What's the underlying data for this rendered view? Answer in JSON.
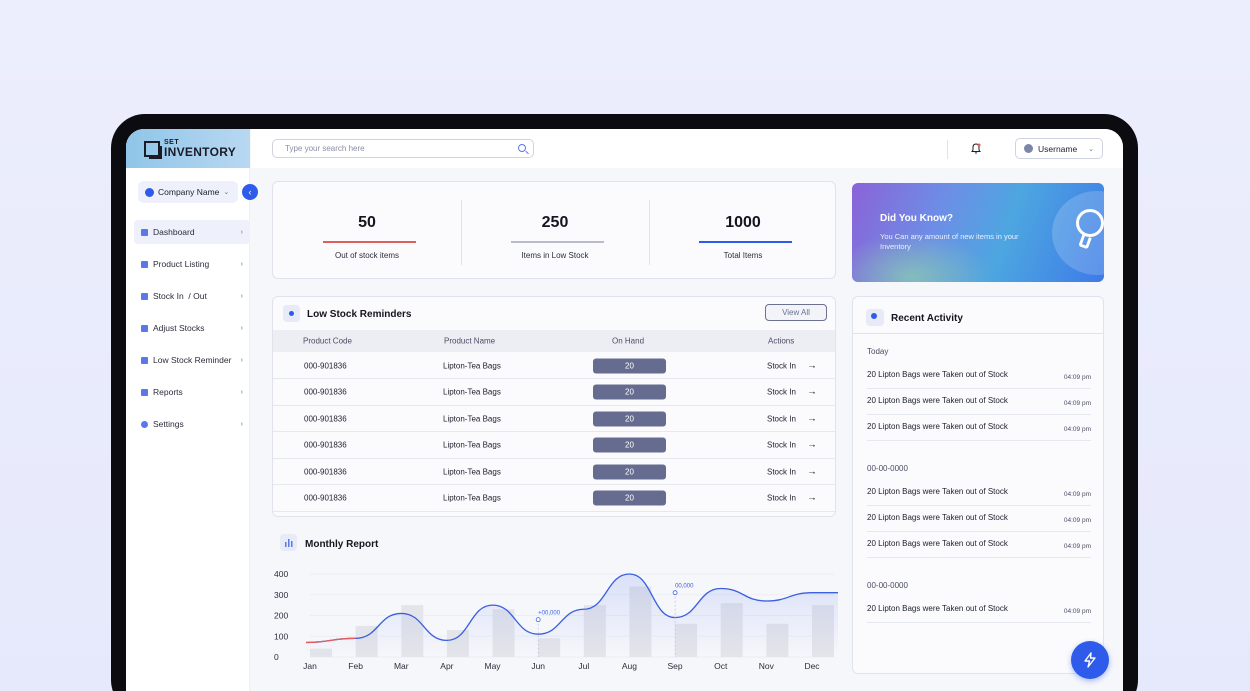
{
  "app": {
    "logo_small": "SET",
    "logo_big": "INVENTORY",
    "company_name": "Company Name"
  },
  "search": {
    "placeholder": "Type your search here"
  },
  "user": {
    "name": "Username"
  },
  "sidebar": {
    "items": [
      {
        "label": "Dashboard",
        "active": true
      },
      {
        "label": "Product Listing"
      },
      {
        "label": "Stock In  / Out"
      },
      {
        "label": "Adjust Stocks"
      },
      {
        "label": "Low Stock Reminder"
      },
      {
        "label": "Reports"
      },
      {
        "label": "Settings"
      }
    ]
  },
  "stats": [
    {
      "value": "50",
      "label": "Out of stock items",
      "color": "#e35d5d"
    },
    {
      "value": "250",
      "label": "Items in Low Stock",
      "color": "#b8bccb"
    },
    {
      "value": "1000",
      "label": "Total Items",
      "color": "#2f5bea"
    }
  ],
  "did_you_know": {
    "title": "Did You Know?",
    "text": "You Can any amount of new items in your Inventory"
  },
  "low_stock": {
    "title": "Low Stock Reminders",
    "view_all": "View All",
    "columns": [
      "Product Code",
      "Product Name",
      "On Hand",
      "Actions"
    ],
    "rows": [
      {
        "code": "000-901836",
        "name": "Lipton-Tea Bags",
        "qty": "20",
        "action": "Stock In"
      },
      {
        "code": "000-901836",
        "name": "Lipton-Tea Bags",
        "qty": "20",
        "action": "Stock In"
      },
      {
        "code": "000-901836",
        "name": "Lipton-Tea Bags",
        "qty": "20",
        "action": "Stock In"
      },
      {
        "code": "000-901836",
        "name": "Lipton-Tea Bags",
        "qty": "20",
        "action": "Stock In"
      },
      {
        "code": "000-901836",
        "name": "Lipton-Tea Bags",
        "qty": "20",
        "action": "Stock In"
      },
      {
        "code": "000-901836",
        "name": "Lipton-Tea Bags",
        "qty": "20",
        "action": "Stock In"
      }
    ]
  },
  "monthly_report": {
    "title": "Monthly Report"
  },
  "chart_data": {
    "type": "bar",
    "categories": [
      "Jan",
      "Feb",
      "Mar",
      "Apr",
      "May",
      "Jun",
      "Jul",
      "Aug",
      "Sep",
      "Oct",
      "Nov",
      "Dec"
    ],
    "ylim": [
      0,
      400
    ],
    "yticks": [
      0,
      100,
      200,
      300,
      400
    ],
    "series": [
      {
        "type": "bar",
        "values": [
          40,
          150,
          250,
          130,
          230,
          90,
          250,
          340,
          160,
          260,
          160,
          250
        ]
      },
      {
        "type": "line",
        "values": [
          70,
          90,
          210,
          80,
          250,
          110,
          230,
          400,
          190,
          330,
          270,
          310
        ]
      }
    ],
    "annotations": [
      {
        "x": "Jun",
        "y": 180,
        "text": "+00,000"
      },
      {
        "x": "Sep",
        "y": 310,
        "text": "00,000"
      }
    ],
    "grid": true
  },
  "recent_activity": {
    "title": "Recent Activity",
    "groups": [
      {
        "label": "Today",
        "items": [
          {
            "text": "20 Lipton Bags were Taken out of Stock",
            "time": "04:09 pm"
          },
          {
            "text": "20 Lipton Bags were Taken out of Stock",
            "time": "04:09 pm"
          },
          {
            "text": "20 Lipton Bags were Taken out of Stock",
            "time": "04:09 pm"
          }
        ]
      },
      {
        "label": "00-00-0000",
        "items": [
          {
            "text": "20 Lipton Bags were Taken out of Stock",
            "time": "04:09 pm"
          },
          {
            "text": "20 Lipton Bags were Taken out of Stock",
            "time": "04:09 pm"
          },
          {
            "text": "20 Lipton Bags were Taken out of Stock",
            "time": "04:09 pm"
          }
        ]
      },
      {
        "label": "00-00-0000",
        "items": [
          {
            "text": "20 Lipton Bags were Taken out of Stock",
            "time": "04:09 pm"
          }
        ]
      }
    ]
  },
  "icons": {
    "fab": "lightning-icon",
    "notification": "bell-icon",
    "tip": "lightbulb-icon"
  }
}
